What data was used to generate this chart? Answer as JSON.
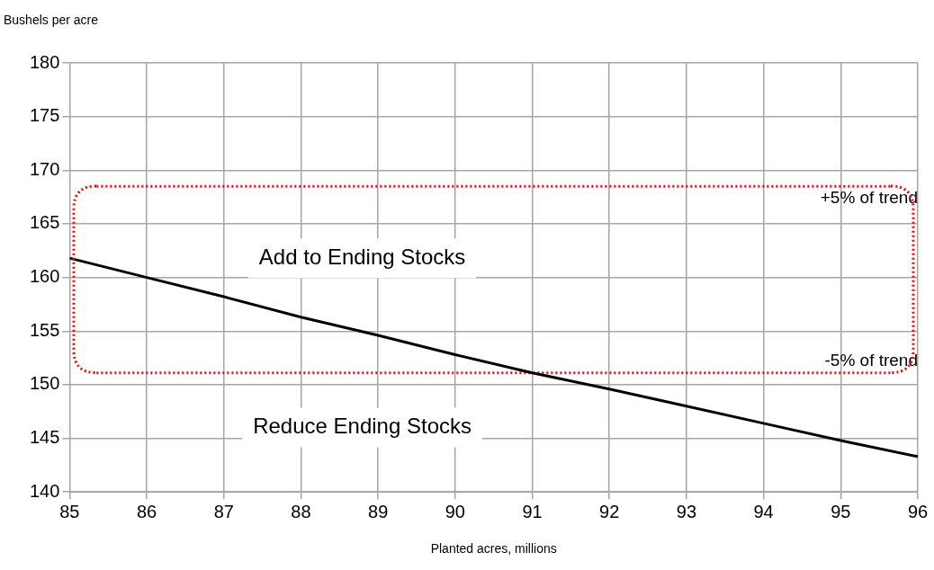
{
  "chart_data": {
    "type": "line",
    "xlabel": "Planted acres, millions",
    "ylabel": "Bushels per acre",
    "series": [
      {
        "color": "#000000",
        "x": [
          85,
          86,
          87,
          88,
          89,
          90,
          91,
          92,
          93,
          94,
          95,
          96
        ],
        "values": [
          161.8,
          160.0,
          158.2,
          156.3,
          154.6,
          152.8,
          151.1,
          149.6,
          148.0,
          146.4,
          144.8,
          143.3
        ]
      }
    ],
    "xlim": [
      85,
      96
    ],
    "xticks": [
      85,
      86,
      87,
      88,
      89,
      90,
      91,
      92,
      93,
      94,
      95,
      96
    ],
    "ylim": [
      140,
      180
    ],
    "yticks": [
      140,
      145,
      150,
      155,
      160,
      165,
      170,
      175,
      180
    ],
    "grid": true,
    "legend": false,
    "marker": "none",
    "line_style": "solid",
    "ref_lines": [
      {
        "axis": "y",
        "value": 168.5,
        "label": "+5% of trend",
        "color": "#ff0000",
        "line_style": "dotted"
      },
      {
        "axis": "y",
        "value": 151.1,
        "label": "-5% of trend",
        "color": "#ff0000",
        "line_style": "dotted"
      }
    ],
    "annotations": [
      "Add to Ending Stocks",
      "Reduce Ending Stocks"
    ]
  }
}
